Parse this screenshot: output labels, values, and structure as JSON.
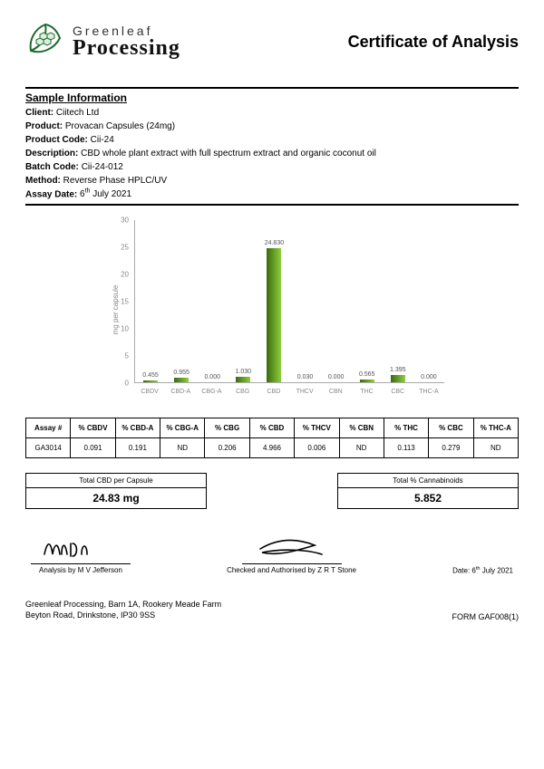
{
  "brand": {
    "top": "Greenleaf",
    "bottom": "Processing"
  },
  "title": "Certificate of Analysis",
  "section_title": "Sample Information",
  "info": {
    "client_label": "Client:",
    "client": "Ciitech Ltd",
    "product_label": "Product:",
    "product": "Provacan Capsules (24mg)",
    "product_code_label": "Product Code:",
    "product_code": "Cii-24",
    "description_label": "Description:",
    "description": "CBD whole plant extract with full spectrum extract and organic coconut oil",
    "batch_label": "Batch Code:",
    "batch": "Cii-24-012",
    "method_label": "Method:",
    "method": "Reverse Phase HPLC/UV",
    "assay_date_label": "Assay Date:",
    "assay_date_html": "6<sup>th</sup> July 2021"
  },
  "chart": {
    "type": "bar",
    "ylabel": "mg per capsule",
    "ylim": [
      0,
      30
    ],
    "ytick_step": 5,
    "yticks": [
      "0",
      "5",
      "10",
      "15",
      "20",
      "25",
      "30"
    ],
    "bar_gradient": [
      "#3a6b0f",
      "#8fce3a"
    ],
    "axis_color": "#aaaaaa",
    "label_color": "#888888",
    "label_fontsize": 8,
    "value_fontsize": 7,
    "categories": [
      "CBDV",
      "CBD-A",
      "CBG-A",
      "CBG",
      "CBD",
      "THCV",
      "CBN",
      "THC",
      "CBC",
      "THC-A"
    ],
    "values": [
      0.455,
      0.955,
      0.0,
      1.03,
      24.83,
      0.03,
      0.0,
      0.565,
      1.395,
      0.0
    ],
    "value_labels": [
      "0.455",
      "0.955",
      "0.000",
      "1.030",
      "24.830",
      "0.030",
      "0.000",
      "0.565",
      "1.395",
      "0.000"
    ]
  },
  "table": {
    "headers": [
      "Assay #",
      "% CBDV",
      "% CBD-A",
      "% CBG-A",
      "% CBG",
      "% CBD",
      "% THCV",
      "% CBN",
      "% THC",
      "% CBC",
      "% THC-A"
    ],
    "row": [
      "GA3014",
      "0.091",
      "0.191",
      "ND",
      "0.206",
      "4.966",
      "0.006",
      "ND",
      "0.113",
      "0.279",
      "ND"
    ]
  },
  "totals": {
    "left_label": "Total CBD per Capsule",
    "left_value": "24.83 mg",
    "right_label": "Total % Cannabinoids",
    "right_value": "5.852"
  },
  "signatures": {
    "analysis_label": "Analysis by M V Jefferson",
    "checked_label": "Checked and Authorised by Z R T Stone",
    "date_label": "Date: 6",
    "date_suffix": "th",
    "date_rest": " July 2021"
  },
  "footer": {
    "addr1": "Greenleaf Processing, Barn 1A, Rookery Meade Farm",
    "addr2": "Beyton Road, Drinkstone, IP30 9SS",
    "form": "FORM GAF008(1)"
  },
  "logo_colors": {
    "stroke": "#1e6b2f",
    "fill": "#c8e0c8"
  }
}
